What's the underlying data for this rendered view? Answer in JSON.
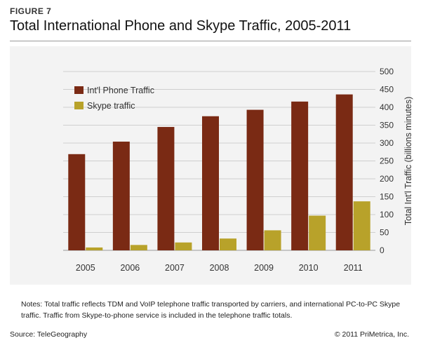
{
  "figure_label": "FIGURE 7",
  "title": "Total International Phone and Skype Traffic, 2005-2011",
  "notes": "Notes: Total traffic reflects TDM and VoIP telephone traffic transported by carriers, and international PC-to-PC Skype traffic. Traffic from Skype-to-phone service is included in the telephone traffic totals.",
  "source": "Source: TeleGeography",
  "copyright": "© 2011 PriMetrica, Inc.",
  "colors": {
    "phone": "#7a2a14",
    "skype": "#b8a22a"
  },
  "chart_data": {
    "type": "bar",
    "title": "Total International Phone and Skype Traffic, 2005-2011",
    "categories": [
      "2005",
      "2006",
      "2007",
      "2008",
      "2009",
      "2010",
      "2011"
    ],
    "series": [
      {
        "name": "Int'l Phone Traffic",
        "values": [
          269,
          304,
          345,
          375,
          393,
          416,
          436
        ]
      },
      {
        "name": "Skype traffic",
        "values": [
          8,
          15,
          22,
          33,
          56,
          97,
          137
        ]
      }
    ],
    "ylabel": "Total Int'l Traffic (billions minutes)",
    "ylim": [
      0,
      500
    ],
    "yticks": [
      0,
      50,
      100,
      150,
      200,
      250,
      300,
      350,
      400,
      450,
      500
    ],
    "y_axis_side": "right",
    "grid": true,
    "legend": "top-left"
  }
}
